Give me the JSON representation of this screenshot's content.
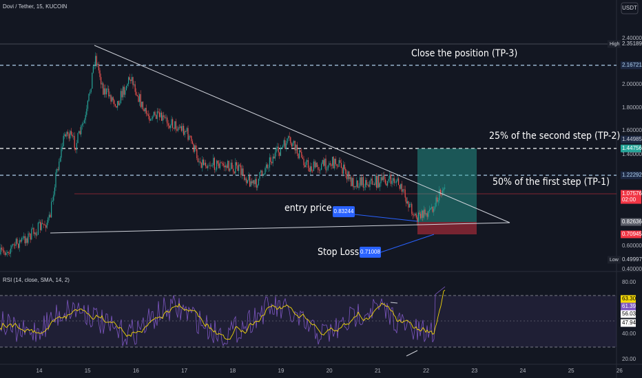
{
  "header": {
    "symbol": "Dovi / Tether, 15, KUCOIN",
    "currency": "USDT"
  },
  "price_axis": [
    "2.40000",
    "2.00000",
    "1.80000",
    "1.60000",
    "1.40000",
    "0.60000",
    "0.40000"
  ],
  "price_tags": [
    {
      "label": "High",
      "value": "2.35189"
    },
    {
      "value": "2.16721"
    },
    {
      "value": "1.44985"
    },
    {
      "value": "1.44756"
    },
    {
      "value": "1.22292"
    },
    {
      "value": "1.07576",
      "countdown": "02:00"
    },
    {
      "value": "0.82636"
    },
    {
      "value": "0.70945"
    },
    {
      "label": "Low",
      "value": "0.49997"
    }
  ],
  "annotations": {
    "tp3": "Close the position (TP-3)",
    "tp2": "25% of the second step (TP-2)",
    "tp1": "50% of the first step (TP-1)",
    "entry": "entry price",
    "entry_value": "0.83244",
    "stop": "Stop Loss",
    "stop_value": "0.71008"
  },
  "rsi": {
    "title": "RSI (14, close, SMA, 14, 2)",
    "axis": [
      "80.00",
      "40.00",
      "20.00"
    ],
    "tags": [
      "63.30",
      "61.39",
      "56.03",
      "47.94"
    ]
  },
  "time_axis": [
    "14",
    "15",
    "16",
    "17",
    "18",
    "19",
    "20",
    "21",
    "22",
    "23",
    "24",
    "25",
    "26"
  ]
}
